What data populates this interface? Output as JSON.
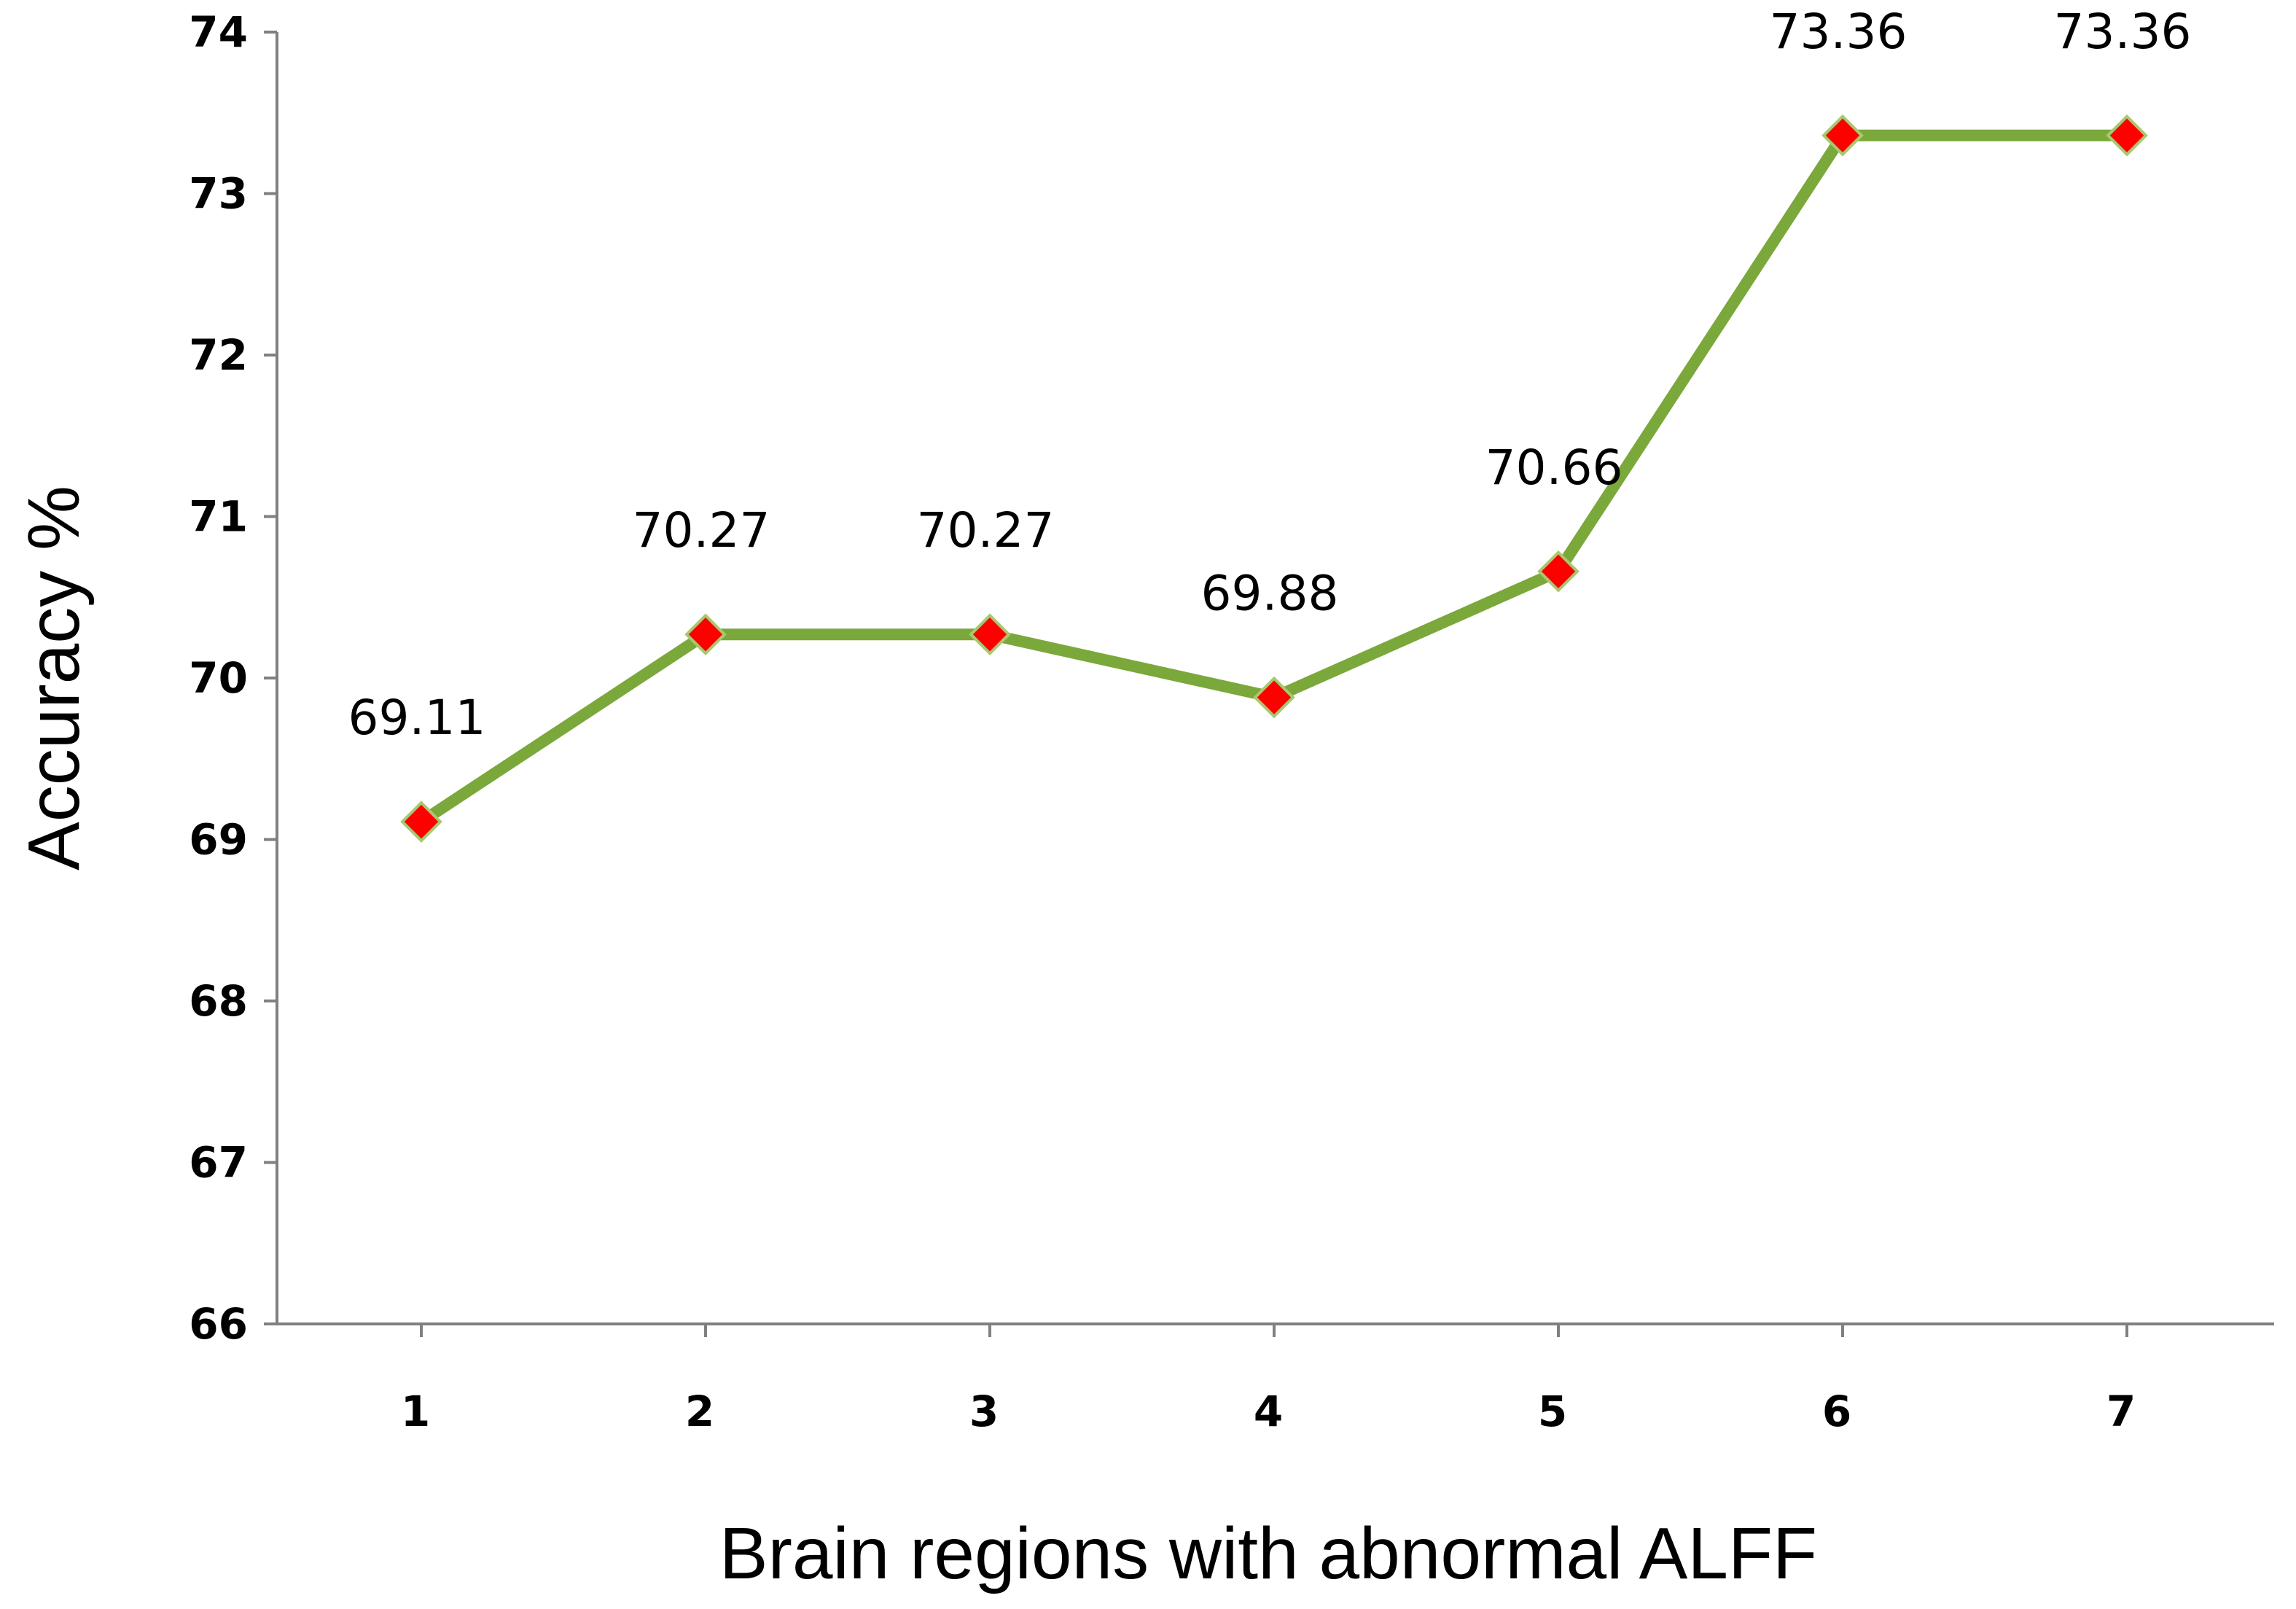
{
  "chart_data": {
    "type": "line",
    "title": "",
    "xlabel": "Brain regions with abnormal ALFF",
    "ylabel": "Accuracy %",
    "categories": [
      "1",
      "2",
      "3",
      "4",
      "5",
      "6",
      "7"
    ],
    "series": [
      {
        "values": [
          69.11,
          70.27,
          70.27,
          69.88,
          70.66,
          73.36,
          73.36
        ],
        "labels": [
          "69.11",
          "70.27",
          "70.27",
          "69.88",
          "70.66",
          "73.36",
          "73.36"
        ]
      }
    ],
    "ylim": [
      66,
      74
    ],
    "yticks": [
      "66",
      "67",
      "68",
      "69",
      "70",
      "71",
      "72",
      "73",
      "74"
    ],
    "grid": false,
    "legend": "none",
    "colors": {
      "line": "#7aa83a",
      "marker": "#ff0000",
      "marker_edge": "#a8c870",
      "axis": "#808080"
    }
  }
}
